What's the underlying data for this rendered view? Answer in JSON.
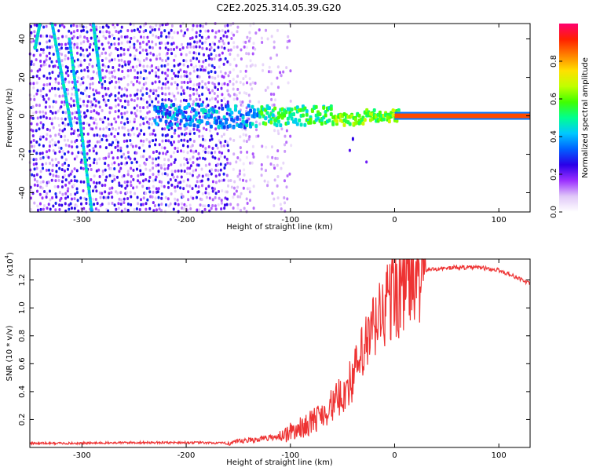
{
  "title": "C2E2.2025.314.05.39.G20",
  "spectrogram": {
    "type": "heatmap",
    "xlabel": "Height of straight line (km)",
    "ylabel": "Frequency (Hz)",
    "xlim": [
      -350,
      130
    ],
    "ylim": [
      -50,
      48
    ],
    "xticks": [
      -300,
      -200,
      -100,
      0,
      100
    ],
    "yticks": [
      -40,
      -20,
      0,
      20,
      40
    ],
    "colorbar": {
      "label": "Normalized spectral amplitude",
      "range": [
        0,
        1
      ],
      "ticks": [
        0.0,
        0.2,
        0.4,
        0.6,
        0.8
      ],
      "tick_labels": [
        "0.0",
        "0.2",
        "0.4",
        "0.6",
        "0.8"
      ],
      "colors": [
        "#ffffff",
        "#e0c8f8",
        "#9b30ff",
        "#2a00e8",
        "#0060ff",
        "#00c8ff",
        "#00ff90",
        "#40ff00",
        "#c0ff00",
        "#ffe000",
        "#ff8000",
        "#ff2000",
        "#ff0070"
      ]
    }
  },
  "snr": {
    "type": "line",
    "xlabel": "Height of straight line (km)",
    "ylabel": "SNR (10 * v/v)",
    "y_scale_label": "(x10",
    "y_scale_exp": "4",
    "y_scale_close": ")",
    "xlim": [
      -350,
      130
    ],
    "ylim": [
      0,
      1.35
    ],
    "xticks": [
      -300,
      -200,
      -100,
      0,
      100
    ],
    "yticks": [
      0.2,
      0.4,
      0.6,
      0.8,
      1.0,
      1.2
    ],
    "ytick_labels": [
      "0.2",
      "0.4",
      "0.6",
      "0.8",
      "1.0",
      "1.2"
    ],
    "color": "#ee3333",
    "x": [
      -350,
      -300,
      -250,
      -200,
      -160,
      -150,
      -140,
      -130,
      -120,
      -110,
      -100,
      -90,
      -80,
      -70,
      -60,
      -50,
      -40,
      -30,
      -20,
      -10,
      0,
      10,
      20,
      30,
      40,
      60,
      80,
      100,
      110,
      120,
      130
    ],
    "values": [
      0.03,
      0.03,
      0.035,
      0.035,
      0.03,
      0.04,
      0.05,
      0.06,
      0.07,
      0.08,
      0.11,
      0.14,
      0.18,
      0.24,
      0.3,
      0.38,
      0.5,
      0.68,
      0.85,
      1.0,
      1.1,
      1.18,
      1.24,
      1.27,
      1.28,
      1.29,
      1.29,
      1.27,
      1.24,
      1.21,
      1.17
    ]
  }
}
